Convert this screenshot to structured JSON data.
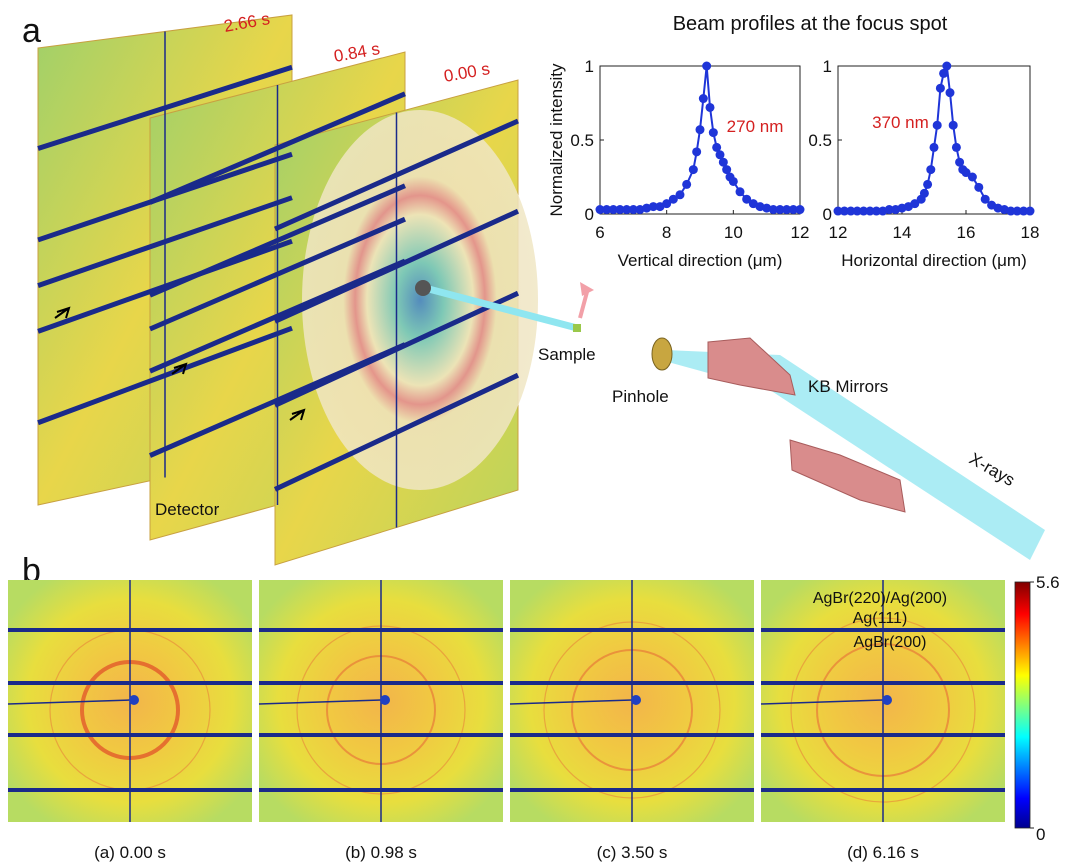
{
  "panel_a": {
    "label": "a",
    "times": [
      "2.66 s",
      "0.84 s",
      "0.00 s"
    ],
    "detector": "Detector",
    "sample": "Sample",
    "pinhole": "Pinhole",
    "mirrors": "KB Mirrors",
    "xrays": "X-rays",
    "profiles_title": "Beam profiles at the focus spot"
  },
  "chart_data": [
    {
      "type": "line",
      "xlabel": "Vertical direction (μm)",
      "ylabel": "Normalized intensity",
      "annotation": "270 nm",
      "color": "#1f35d8",
      "x": [
        6.0,
        6.2,
        6.4,
        6.6,
        6.8,
        7.0,
        7.2,
        7.4,
        7.6,
        7.8,
        8.0,
        8.2,
        8.4,
        8.6,
        8.8,
        8.9,
        9.0,
        9.1,
        9.2,
        9.3,
        9.4,
        9.5,
        9.6,
        9.7,
        9.8,
        9.9,
        10.0,
        10.2,
        10.4,
        10.6,
        10.8,
        11.0,
        11.2,
        11.4,
        11.6,
        11.8,
        12.0
      ],
      "values": [
        0.03,
        0.03,
        0.03,
        0.03,
        0.03,
        0.03,
        0.03,
        0.04,
        0.05,
        0.05,
        0.07,
        0.1,
        0.13,
        0.2,
        0.3,
        0.42,
        0.57,
        0.78,
        1.0,
        0.72,
        0.55,
        0.45,
        0.4,
        0.35,
        0.3,
        0.25,
        0.22,
        0.15,
        0.1,
        0.07,
        0.05,
        0.04,
        0.03,
        0.03,
        0.03,
        0.03,
        0.03
      ],
      "xlim": [
        6,
        12
      ],
      "xticks": [
        6,
        8,
        10,
        12
      ],
      "ylim": [
        0,
        1
      ],
      "yticks": [
        0,
        0.5,
        1
      ]
    },
    {
      "type": "line",
      "xlabel": "Horizontal direction (μm)",
      "annotation": "370 nm",
      "color": "#1f35d8",
      "x": [
        12.0,
        12.2,
        12.4,
        12.6,
        12.8,
        13.0,
        13.2,
        13.4,
        13.6,
        13.8,
        14.0,
        14.2,
        14.4,
        14.6,
        14.7,
        14.8,
        14.9,
        15.0,
        15.1,
        15.2,
        15.3,
        15.4,
        15.5,
        15.6,
        15.7,
        15.8,
        15.9,
        16.0,
        16.2,
        16.4,
        16.6,
        16.8,
        17.0,
        17.2,
        17.4,
        17.6,
        17.8,
        18.0
      ],
      "values": [
        0.02,
        0.02,
        0.02,
        0.02,
        0.02,
        0.02,
        0.02,
        0.02,
        0.03,
        0.03,
        0.04,
        0.05,
        0.07,
        0.1,
        0.14,
        0.2,
        0.3,
        0.45,
        0.6,
        0.85,
        0.95,
        1.0,
        0.82,
        0.6,
        0.45,
        0.35,
        0.3,
        0.28,
        0.25,
        0.18,
        0.1,
        0.06,
        0.04,
        0.03,
        0.02,
        0.02,
        0.02,
        0.02
      ],
      "xlim": [
        12,
        18
      ],
      "xticks": [
        12,
        14,
        16,
        18
      ],
      "ylim": [
        0,
        1
      ],
      "yticks": [
        0,
        0.5,
        1
      ]
    }
  ],
  "panel_b": {
    "label": "b",
    "captions": [
      "(a) 0.00 s",
      "(b) 0.98 s",
      "(c) 3.50 s",
      "(d) 6.16 s"
    ],
    "annotations": [
      "AgBr(220)/Ag(200)",
      "Ag(111)",
      "AgBr(200)"
    ],
    "colorbar": {
      "lim": [
        0,
        5.6
      ],
      "ticks": [
        0,
        5.6
      ]
    }
  }
}
